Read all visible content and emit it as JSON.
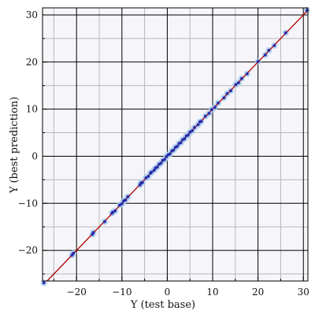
{
  "chart_data": {
    "type": "scatter",
    "xlabel": "Y (test base)",
    "ylabel": "Y (best prediction)",
    "xlim": [
      -27.5,
      31
    ],
    "ylim": [
      -26.5,
      31.5
    ],
    "x_major_ticks": [
      -20,
      -10,
      0,
      10,
      20,
      30
    ],
    "y_major_ticks": [
      -20,
      -10,
      0,
      10,
      20,
      30
    ],
    "x_minor_step": 5,
    "y_minor_step": 5,
    "grid": true,
    "reference_line": {
      "kind": "identity",
      "color": "#b00000"
    },
    "series": [
      {
        "points_color": "#2a2aa8",
        "halo_color": "#aaccee",
        "x": [
          -27.2,
          -21,
          -20.7,
          -16.5,
          -16.3,
          -13.8,
          -12.2,
          -12,
          -11.5,
          -10.5,
          -10,
          -9.6,
          -9.2,
          -8.7,
          -6,
          -5.8,
          -5.5,
          -4.7,
          -4.2,
          -3.7,
          -3.5,
          -2.9,
          -2.6,
          -2.2,
          -1.8,
          -1.4,
          -1,
          -0.6,
          -0.2,
          0.2,
          0.6,
          1,
          1.4,
          1.8,
          2.2,
          2.6,
          3,
          3.4,
          3.8,
          4.2,
          4.6,
          5,
          5.5,
          6,
          6.8,
          7.2,
          7.5,
          8.4,
          9.2,
          9.8,
          10.5,
          11.2,
          12.5,
          13.2,
          14,
          15.1,
          15.7,
          16.4,
          17.6,
          20,
          21.6,
          22.4,
          23.6,
          26.1,
          30.8
        ],
        "y": [
          -26.9,
          -21,
          -20.6,
          -16.6,
          -16.2,
          -13.9,
          -12.1,
          -11.9,
          -11.6,
          -10.4,
          -10.1,
          -9.5,
          -9.3,
          -8.6,
          -6.1,
          -5.7,
          -5.6,
          -4.6,
          -4.3,
          -3.6,
          -3.4,
          -3,
          -2.5,
          -2.3,
          -1.7,
          -1.5,
          -0.9,
          -0.7,
          -0.1,
          0.3,
          0.5,
          1.1,
          1.3,
          1.9,
          2.1,
          2.7,
          2.9,
          3.5,
          3.7,
          4.3,
          4.5,
          5.1,
          5.4,
          6.1,
          6.7,
          7.3,
          7.4,
          8.5,
          9.1,
          9.9,
          10.4,
          11.3,
          12.4,
          13.3,
          13.9,
          15.2,
          15.6,
          16.5,
          17.5,
          20.1,
          21.5,
          22.5,
          23.5,
          26.2,
          31
        ]
      }
    ]
  }
}
